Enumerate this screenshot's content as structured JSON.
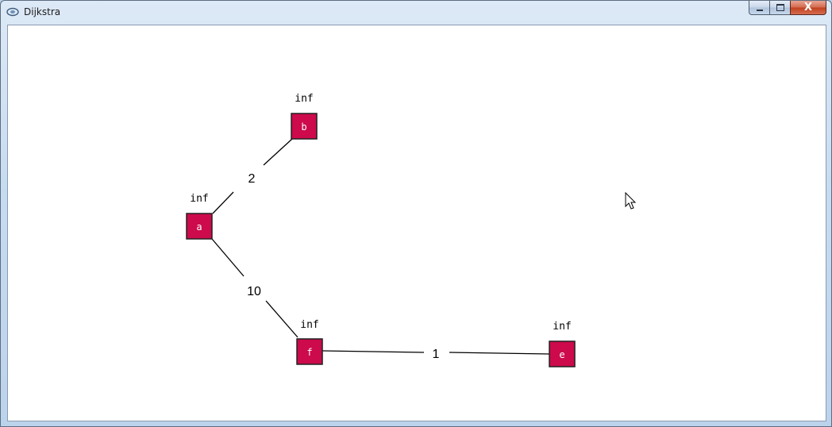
{
  "window": {
    "title": "Dijkstra",
    "close_label": "X"
  },
  "graph": {
    "nodes": [
      {
        "id": "a",
        "label": "a",
        "distance": "inf"
      },
      {
        "id": "b",
        "label": "b",
        "distance": "inf"
      },
      {
        "id": "f",
        "label": "f",
        "distance": "inf"
      },
      {
        "id": "e",
        "label": "e",
        "distance": "inf"
      }
    ],
    "edges": [
      {
        "from": "a",
        "to": "b",
        "weight": "2"
      },
      {
        "from": "a",
        "to": "f",
        "weight": "10"
      },
      {
        "from": "f",
        "to": "e",
        "weight": "1"
      }
    ],
    "colors": {
      "node_fill": "#cc0a4c",
      "node_border": "#222222",
      "node_text": "#ffffff",
      "edge": "#000000"
    }
  }
}
